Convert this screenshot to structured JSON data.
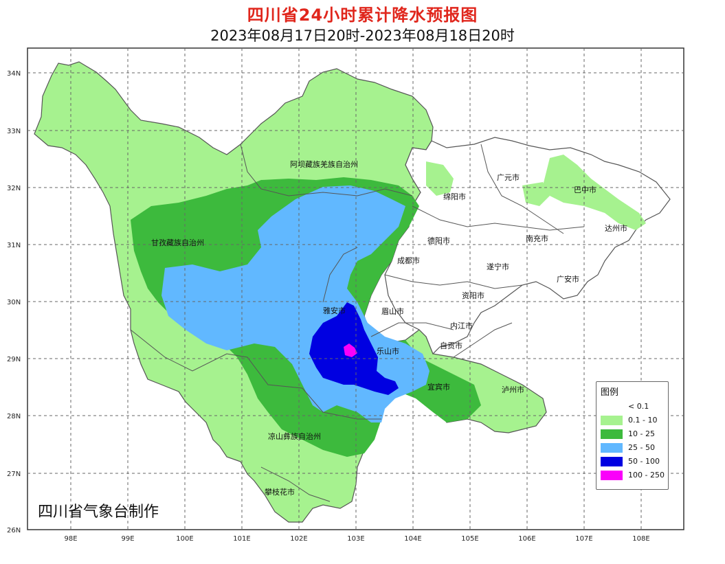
{
  "title": "四川省24小时累计降水预报图",
  "subtitle": "2023年08月17日20时-2023年08月18日20时",
  "credit": "四川省气象台制作",
  "lat_labels": [
    "34N",
    "33N",
    "32N",
    "31N",
    "30N",
    "29N",
    "28N",
    "27N",
    "26N"
  ],
  "lon_labels": [
    "98E",
    "99E",
    "100E",
    "101E",
    "102E",
    "103E",
    "104E",
    "105E",
    "106E",
    "107E",
    "108E"
  ],
  "prefectures": {
    "aba": "阿坝藏族羌族自治州",
    "ganzi": "甘孜藏族自治州",
    "liangshan": "凉山彝族自治州"
  },
  "cities": {
    "guangyuan": "广元市",
    "bazhong": "巴中市",
    "mianyang": "绵阳市",
    "dazhou": "达州市",
    "deyang": "德阳市",
    "nanchong": "南充市",
    "chengdu": "成都市",
    "suining": "遂宁市",
    "guangan": "广安市",
    "ziyang": "资阳市",
    "yaan": "雅安市",
    "meishan": "眉山市",
    "neijiang": "内江市",
    "zigong": "自贡市",
    "leshan": "乐山市",
    "yibin": "宜宾市",
    "luzhou": "泸州市",
    "panzhihua": "攀枝花市"
  },
  "legend": {
    "title": "图例",
    "items": [
      {
        "label": "< 0.1",
        "color": "#ffffff"
      },
      {
        "label": "0.1 - 10",
        "color": "#a6f28f"
      },
      {
        "label": "10 - 25",
        "color": "#3dba3d"
      },
      {
        "label": "25 - 50",
        "color": "#61b8ff"
      },
      {
        "label": "50 - 100",
        "color": "#0000e1"
      },
      {
        "label": "100 - 250",
        "color": "#fa00fa"
      }
    ]
  }
}
